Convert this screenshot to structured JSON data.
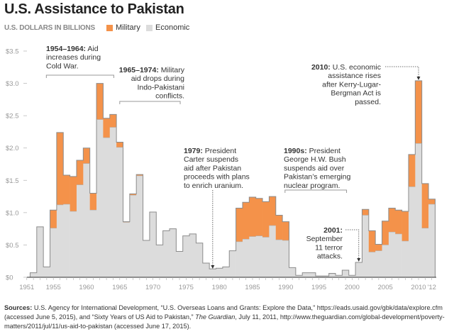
{
  "title": "U.S. Assistance to Pakistan",
  "subtitle": "U.S. DOLLARS IN BILLIONS",
  "colors": {
    "military": "#f4924a",
    "economic": "#dcdcdc",
    "outline": "#8c8c8c",
    "axis": "#555555",
    "text": "#333333"
  },
  "chart_data": {
    "type": "bar",
    "stacked": true,
    "title": "U.S. Assistance to Pakistan",
    "ylabel": "U.S. DOLLARS IN BILLIONS",
    "ylim": [
      0,
      3.5
    ],
    "yticks": [
      "$0",
      "$0.5",
      "$1.0",
      "$1.5",
      "$2.0",
      "$2.5",
      "$3.0",
      "$3.5"
    ],
    "xticks": [
      "1951",
      "1955",
      "1960",
      "1965",
      "1970",
      "1975",
      "1980",
      "1985",
      "1990",
      "1995",
      "2000",
      "2005",
      "2010",
      "'12"
    ],
    "xtick_years": [
      1951,
      1955,
      1960,
      1965,
      1970,
      1975,
      1980,
      1985,
      1990,
      1995,
      2000,
      2005,
      2010,
      2012
    ],
    "grid": false,
    "legend": {
      "placement": "top-left",
      "entries": [
        "Military",
        "Economic"
      ]
    },
    "years": [
      1952,
      1953,
      1954,
      1955,
      1956,
      1957,
      1958,
      1959,
      1960,
      1961,
      1962,
      1963,
      1964,
      1965,
      1966,
      1967,
      1968,
      1969,
      1970,
      1971,
      1972,
      1973,
      1974,
      1975,
      1976,
      1977,
      1978,
      1979,
      1980,
      1981,
      1982,
      1983,
      1984,
      1985,
      1986,
      1987,
      1988,
      1989,
      1990,
      1991,
      1992,
      1993,
      1994,
      1995,
      1996,
      1997,
      1998,
      1999,
      2000,
      2001,
      2002,
      2003,
      2004,
      2005,
      2006,
      2007,
      2008,
      2009,
      2010,
      2011,
      2012
    ],
    "series": [
      {
        "name": "Economic",
        "values": [
          0.07,
          0.78,
          0.16,
          0.76,
          1.12,
          1.13,
          1.02,
          1.43,
          1.76,
          1.04,
          2.44,
          2.16,
          2.32,
          2.01,
          0.85,
          1.27,
          1.57,
          0.57,
          1.01,
          0.5,
          0.72,
          0.75,
          0.4,
          0.64,
          0.67,
          0.53,
          0.22,
          0.13,
          0.14,
          0.16,
          0.41,
          0.55,
          0.59,
          0.63,
          0.64,
          0.62,
          0.8,
          0.58,
          0.57,
          0.15,
          0.03,
          0.07,
          0.07,
          0.02,
          0.02,
          0.06,
          0.03,
          0.11,
          0.03,
          0.23,
          0.96,
          0.39,
          0.41,
          0.5,
          0.7,
          0.67,
          0.56,
          1.4,
          2.07,
          0.76,
          1.13
        ]
      },
      {
        "name": "Military",
        "values": [
          0,
          0,
          0,
          0.28,
          1.12,
          0.45,
          0.54,
          0.38,
          0.24,
          0.26,
          0.56,
          0.3,
          0.2,
          0.08,
          0.01,
          0.02,
          0.02,
          0,
          0,
          0,
          0,
          0,
          0,
          0,
          0,
          0,
          0,
          0,
          0,
          0,
          0,
          0.52,
          0.57,
          0.61,
          0.58,
          0.55,
          0.45,
          0.38,
          0.29,
          0,
          0,
          0,
          0,
          0,
          0,
          0,
          0,
          0,
          0,
          0,
          0.09,
          0.33,
          0.1,
          0.37,
          0.37,
          0.37,
          0.46,
          0.5,
          0.97,
          0.69,
          0.08
        ]
      }
    ],
    "annotations": [
      {
        "bold": "1954–1964:",
        "lines": [
          " Aid",
          "increases during",
          "Cold War."
        ],
        "span": [
          1954,
          1964
        ]
      },
      {
        "bold": "1965–1974:",
        "lines": [
          " Military",
          "aid drops during",
          "Indo-Pakistani",
          "conflicts."
        ],
        "span": [
          1965,
          1974
        ]
      },
      {
        "bold": "1979:",
        "lines": [
          " President",
          "Carter suspends",
          "aid after Pakistan",
          "proceeds with plans",
          "to enrich uranium."
        ],
        "year": 1979
      },
      {
        "bold": "1990s:",
        "lines": [
          " President",
          "George H.W. Bush",
          "suspends aid over",
          "Pakistan’s emerging",
          "nuclear program."
        ],
        "span": [
          1990,
          1999
        ]
      },
      {
        "bold": "2001:",
        "lines": [
          "",
          "September",
          "11 terror",
          "attacks."
        ],
        "year": 2001
      },
      {
        "bold": "2010:",
        "lines": [
          " U.S. economic",
          "assistance rises",
          "after Kerry-Lugar-",
          "Bergman Act is",
          "passed."
        ],
        "year": 2010
      }
    ]
  },
  "legend": {
    "military": "Military",
    "economic": "Economic"
  },
  "sources": {
    "label": "Sources:",
    "text1": " U.S. Agency for International Development, “U.S. Overseas Loans and Grants: Explore the Data,” https://eads.usaid.gov/gbk/data/explore.cfm (accessed June 5, 2015), and “Sixty Years of US Aid to Pakistan,” ",
    "italic": "The Guardian",
    "text2": ", July 11, 2011, http://www.theguardian.com/global-development/poverty-matters/2011/jul/11/us-aid-to-pakistan (accessed June 17, 2015)."
  }
}
